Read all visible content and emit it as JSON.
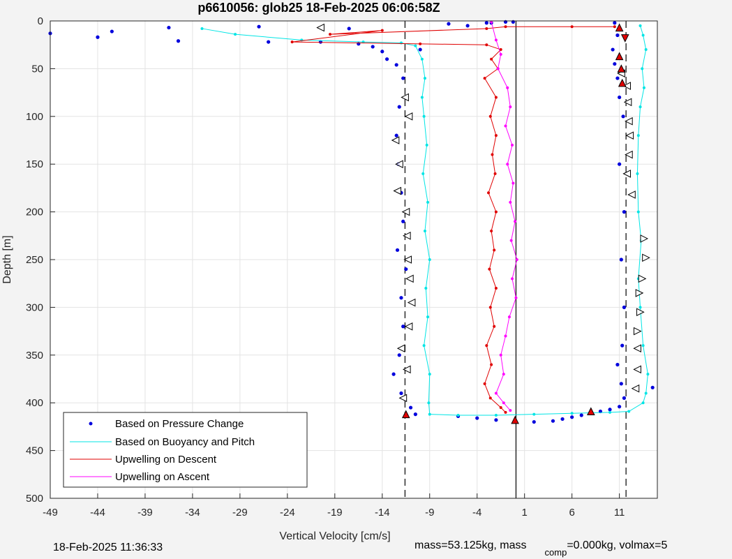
{
  "chart_data": {
    "type": "scatter",
    "title": "p6610056: glob25 18-Feb-2025 06:06:58Z",
    "xlabel": "Vertical Velocity [cm/s]",
    "ylabel": "Depth [m]",
    "xlim": [
      -49,
      15
    ],
    "ylim": [
      0,
      500
    ],
    "y_reversed": true,
    "grid": true,
    "legend_position": "bottom-left",
    "x_ticks": [
      "-49",
      "-44",
      "-39",
      "-34",
      "-29",
      "-24",
      "-19",
      "-14",
      "-9",
      "-4",
      "1",
      "6",
      "11"
    ],
    "y_ticks": [
      "0",
      "50",
      "100",
      "150",
      "200",
      "250",
      "300",
      "350",
      "400",
      "450",
      "500"
    ],
    "vertical_lines": [
      {
        "x": -11.6,
        "style": "dashed",
        "color": "#000000"
      },
      {
        "x": 0.1,
        "style": "solid",
        "color": "#000000"
      },
      {
        "x": 11.7,
        "style": "dashed",
        "color": "#000000"
      }
    ],
    "series": [
      {
        "name": "Based on Pressure Change",
        "color": "#0000dd",
        "style": "dots",
        "points": [
          [
            -49,
            13
          ],
          [
            -44,
            17
          ],
          [
            -42.5,
            11
          ],
          [
            -36.5,
            7
          ],
          [
            -35.5,
            21
          ],
          [
            -27,
            6
          ],
          [
            -26,
            22
          ],
          [
            -20.5,
            22
          ],
          [
            -17.5,
            8
          ],
          [
            -16.5,
            24
          ],
          [
            -15,
            27
          ],
          [
            -14,
            32
          ],
          [
            -13.5,
            40
          ],
          [
            -12.5,
            46
          ],
          [
            -11.8,
            60
          ],
          [
            -12.2,
            90
          ],
          [
            -12.5,
            120
          ],
          [
            -12.3,
            150
          ],
          [
            -12.0,
            180
          ],
          [
            -11.8,
            210
          ],
          [
            -12.4,
            240
          ],
          [
            -11.5,
            260
          ],
          [
            -12.0,
            290
          ],
          [
            -11.8,
            320
          ],
          [
            -12.2,
            350
          ],
          [
            -12.8,
            370
          ],
          [
            -12.0,
            390
          ],
          [
            -11.0,
            405
          ],
          [
            -10.5,
            412
          ],
          [
            -6,
            414
          ],
          [
            -4,
            416
          ],
          [
            -2,
            418
          ],
          [
            0,
            419
          ],
          [
            2,
            420
          ],
          [
            4,
            419
          ],
          [
            5,
            417
          ],
          [
            6,
            415
          ],
          [
            7,
            413
          ],
          [
            8,
            411
          ],
          [
            9,
            409
          ],
          [
            10,
            407
          ],
          [
            11,
            404
          ],
          [
            11.5,
            395
          ],
          [
            11.2,
            380
          ],
          [
            10.8,
            360
          ],
          [
            11.3,
            340
          ],
          [
            11.5,
            300
          ],
          [
            11.2,
            250
          ],
          [
            11.5,
            200
          ],
          [
            11.0,
            150
          ],
          [
            11.4,
            100
          ],
          [
            11.0,
            80
          ],
          [
            10.8,
            60
          ],
          [
            10.5,
            45
          ],
          [
            10.3,
            30
          ],
          [
            10.8,
            15
          ],
          [
            10.5,
            2
          ],
          [
            14.5,
            384
          ],
          [
            -7,
            3
          ],
          [
            -5,
            5
          ],
          [
            -3,
            2
          ],
          [
            -1,
            1
          ],
          [
            -0.2,
            1
          ],
          [
            -2.5,
            2
          ],
          [
            -10,
            30
          ]
        ]
      },
      {
        "name": "Based on Buoyancy and Pitch",
        "color": "#00e5e5",
        "style": "line-markers",
        "points": [
          [
            -33,
            8
          ],
          [
            -29.5,
            14
          ],
          [
            -22.5,
            20
          ],
          [
            -16,
            22
          ],
          [
            -12,
            23
          ],
          [
            -10.5,
            26
          ],
          [
            -9.8,
            40
          ],
          [
            -9.5,
            60
          ],
          [
            -9.8,
            80
          ],
          [
            -9.6,
            100
          ],
          [
            -9.3,
            130
          ],
          [
            -9.7,
            160
          ],
          [
            -9.2,
            190
          ],
          [
            -9.5,
            220
          ],
          [
            -9.0,
            250
          ],
          [
            -9.4,
            280
          ],
          [
            -9.2,
            310
          ],
          [
            -9.6,
            340
          ],
          [
            -9.0,
            370
          ],
          [
            -9.1,
            400
          ],
          [
            -9.0,
            412
          ],
          [
            -6,
            413
          ],
          [
            -2,
            413
          ],
          [
            2,
            412
          ],
          [
            6,
            411
          ],
          [
            10,
            410
          ],
          [
            12,
            409
          ],
          [
            13.5,
            400
          ],
          [
            13.8,
            390
          ],
          [
            14.0,
            370
          ],
          [
            13.5,
            340
          ],
          [
            13.2,
            300
          ],
          [
            13.0,
            270
          ],
          [
            13.3,
            230
          ],
          [
            13.0,
            200
          ],
          [
            12.9,
            160
          ],
          [
            13.0,
            120
          ],
          [
            13.2,
            90
          ],
          [
            13.6,
            70
          ],
          [
            13.4,
            50
          ],
          [
            13.8,
            30
          ],
          [
            13.5,
            15
          ],
          [
            13.2,
            5
          ]
        ]
      },
      {
        "name": "Upwelling on Descent",
        "color": "#e00000",
        "style": "line-markers",
        "points": [
          [
            10.5,
            6
          ],
          [
            6,
            6
          ],
          [
            -1,
            6
          ],
          [
            -3,
            8
          ],
          [
            -19.5,
            14
          ],
          [
            -14,
            10
          ],
          [
            -23.5,
            22
          ],
          [
            -10,
            24
          ],
          [
            -3,
            25
          ],
          [
            -1.5,
            30
          ],
          [
            -2.5,
            40
          ],
          [
            -1.8,
            50
          ],
          [
            -3.2,
            60
          ],
          [
            -2.0,
            80
          ],
          [
            -2.6,
            100
          ],
          [
            -2.0,
            120
          ],
          [
            -2.4,
            140
          ],
          [
            -2.1,
            160
          ],
          [
            -2.8,
            180
          ],
          [
            -2.0,
            200
          ],
          [
            -2.5,
            220
          ],
          [
            -2.2,
            240
          ],
          [
            -2.7,
            260
          ],
          [
            -2.0,
            280
          ],
          [
            -2.6,
            300
          ],
          [
            -2.2,
            320
          ],
          [
            -3.0,
            340
          ],
          [
            -2.5,
            360
          ],
          [
            -3.2,
            380
          ],
          [
            -2.6,
            395
          ],
          [
            -1.5,
            405
          ],
          [
            -1.0,
            410
          ]
        ]
      },
      {
        "name": "Upwelling on Ascent",
        "color": "#ff00ff",
        "style": "line-markers",
        "points": [
          [
            -2.5,
            1
          ],
          [
            -2.0,
            20
          ],
          [
            -1.5,
            35
          ],
          [
            -1.8,
            50
          ],
          [
            -0.8,
            70
          ],
          [
            -0.5,
            90
          ],
          [
            -1.0,
            110
          ],
          [
            -0.3,
            130
          ],
          [
            -0.8,
            150
          ],
          [
            -0.2,
            170
          ],
          [
            -0.5,
            190
          ],
          [
            0.0,
            210
          ],
          [
            -0.4,
            230
          ],
          [
            0.2,
            250
          ],
          [
            -0.3,
            270
          ],
          [
            0.1,
            290
          ],
          [
            -0.6,
            310
          ],
          [
            -1.0,
            330
          ],
          [
            -1.5,
            350
          ],
          [
            -1.2,
            370
          ],
          [
            -2.0,
            390
          ],
          [
            -1.2,
            400
          ],
          [
            -0.5,
            408
          ]
        ]
      }
    ],
    "triangle_markers": {
      "open_left": [
        [
          -20.5,
          7
        ],
        [
          -11.6,
          80
        ],
        [
          -11.2,
          100
        ],
        [
          -12.6,
          125
        ],
        [
          -12.2,
          150
        ],
        [
          -12.4,
          178
        ],
        [
          -11.5,
          200
        ],
        [
          -11.4,
          225
        ],
        [
          -11.3,
          250
        ],
        [
          -11.1,
          270
        ],
        [
          -10.9,
          295
        ],
        [
          -11.2,
          320
        ],
        [
          -12.0,
          343
        ],
        [
          -11.4,
          365
        ],
        [
          -11.8,
          395
        ],
        [
          11.2,
          55
        ],
        [
          11.8,
          68
        ],
        [
          11.9,
          85
        ],
        [
          12.0,
          105
        ],
        [
          12.1,
          120
        ],
        [
          12.0,
          140
        ],
        [
          11.8,
          160
        ],
        [
          12.3,
          182
        ],
        [
          12.9,
          343
        ],
        [
          12.9,
          365
        ],
        [
          12.7,
          385
        ]
      ],
      "open_right": [
        [
          13.6,
          228
        ],
        [
          13.8,
          248
        ],
        [
          13.4,
          270
        ],
        [
          13.1,
          285
        ],
        [
          13.2,
          305
        ],
        [
          12.9,
          325
        ]
      ],
      "filled_red_up": [
        [
          -11.5,
          412
        ],
        [
          0,
          418
        ],
        [
          8,
          409
        ],
        [
          11.3,
          65
        ],
        [
          11.2,
          50
        ],
        [
          11.0,
          37
        ],
        [
          11.0,
          7
        ]
      ],
      "filled_red_down": [
        [
          11.6,
          18
        ]
      ]
    }
  },
  "legend": {
    "entries": [
      "Based on Pressure Change",
      "Based on Buoyancy and Pitch",
      "Upwelling on Descent",
      "Upwelling on Ascent"
    ]
  },
  "footer": {
    "timestamp": "18-Feb-2025 11:36:33",
    "mass_part1": "mass=53.125kg, mass",
    "mass_sub": "comp",
    "mass_part2": "=0.000kg, volmax=5"
  }
}
